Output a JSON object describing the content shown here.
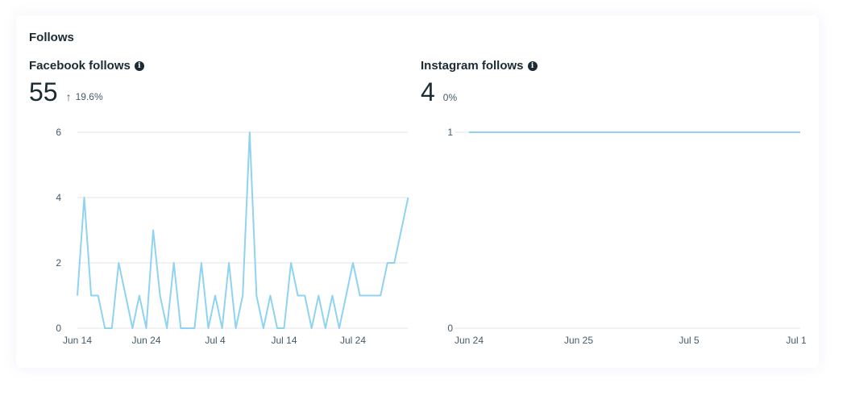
{
  "card": {
    "title": "Follows"
  },
  "facebook": {
    "label": "Facebook follows",
    "value": "55",
    "delta": "19.6%",
    "delta_icon": "arrow-up-icon"
  },
  "instagram": {
    "label": "Instagram follows",
    "value": "4",
    "delta": "0%"
  },
  "colors": {
    "line": "#8fd3f0",
    "grid": "#e2e5e8",
    "text": "#1c2b33"
  },
  "chart_data": [
    {
      "type": "line",
      "name": "facebook-follows-chart",
      "x_tick_labels": [
        "Jun 14",
        "Jun 24",
        "Jul 4",
        "Jul 14",
        "Jul 24"
      ],
      "x_tick_index": [
        0,
        10,
        20,
        30,
        40
      ],
      "y_ticks": [
        0,
        2,
        4,
        6
      ],
      "ylim": [
        0,
        6
      ],
      "grid": true,
      "values": [
        1,
        4,
        1,
        1,
        0,
        0,
        2,
        1,
        0,
        1,
        0,
        3,
        1,
        0,
        2,
        0,
        0,
        0,
        2,
        0,
        1,
        0,
        2,
        0,
        1,
        6,
        1,
        0,
        1,
        0,
        0,
        2,
        1,
        1,
        0,
        1,
        0,
        1,
        0,
        1,
        2,
        1,
        1,
        1,
        1,
        2,
        2,
        3,
        4
      ]
    },
    {
      "type": "line",
      "name": "instagram-follows-chart",
      "x_tick_labels": [
        "Jun 24",
        "Jun 25",
        "Jul 5",
        "Jul 1"
      ],
      "y_ticks": [
        0,
        1
      ],
      "ylim": [
        0,
        1
      ],
      "grid": true,
      "values": [
        1,
        1
      ]
    }
  ]
}
